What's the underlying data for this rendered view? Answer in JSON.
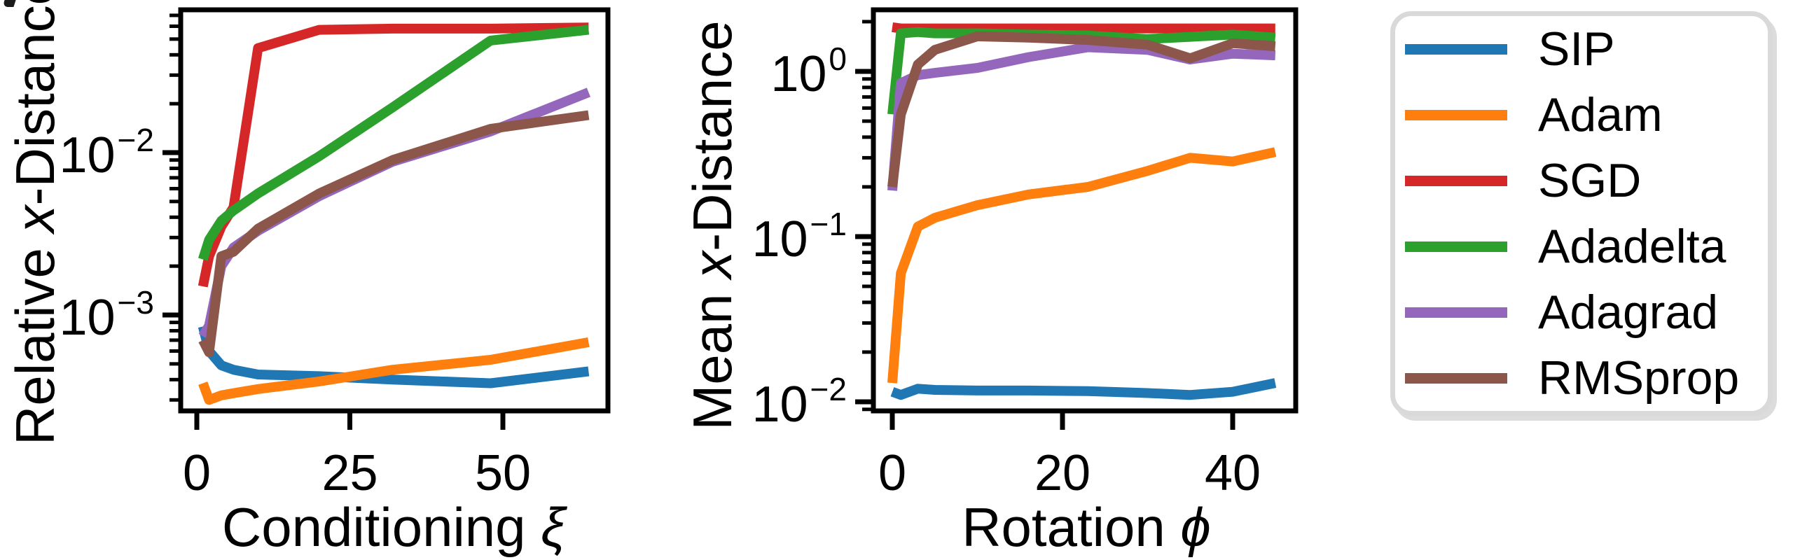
{
  "figure": {
    "background": "#ffffff",
    "axis_color": "#000000",
    "kind": "two-panel log-scale line plots with shared legend"
  },
  "legend": {
    "border_color": "#d9d9d9",
    "entries": [
      {
        "label": "SIP",
        "color": "#1f77b4"
      },
      {
        "label": "Adam",
        "color": "#ff7f0e"
      },
      {
        "label": "SGD",
        "color": "#d62728"
      },
      {
        "label": "Adadelta",
        "color": "#2ca02c"
      },
      {
        "label": "Adagrad",
        "color": "#9467bd"
      },
      {
        "label": "RMSprop",
        "color": "#8c564b"
      }
    ]
  },
  "chart_data": [
    {
      "type": "line",
      "title": "",
      "xlabel": "Conditioning ξ",
      "xlabel_prefix": "Conditioning ",
      "xlabel_symbol": "ξ",
      "ylabel": "Relative x-Distance",
      "ylabel_prefix": "Relative ",
      "ylabel_symbol": "x",
      "ylabel_suffix": "-Distance",
      "xscale": "linear",
      "yscale": "log",
      "xlim": [
        -2.2,
        67.2
      ],
      "ylim": [
        0.00026,
        0.076
      ],
      "x_ticks": [
        0,
        25,
        50
      ],
      "y_ticks": [
        "1e-3",
        "1e-2"
      ],
      "grid": false,
      "x": [
        1,
        2,
        4,
        6,
        10,
        20,
        32,
        48,
        64
      ],
      "series": [
        {
          "name": "SIP",
          "color": "#1f77b4",
          "values": [
            0.00085,
            0.0006,
            0.00049,
            0.00046,
            0.00043,
            0.00042,
            0.0004,
            0.00038,
            0.00045
          ]
        },
        {
          "name": "Adam",
          "color": "#ff7f0e",
          "values": [
            0.00038,
            0.0003,
            0.00032,
            0.00033,
            0.00035,
            0.00039,
            0.00046,
            0.00053,
            0.00068
          ]
        },
        {
          "name": "SGD",
          "color": "#d62728",
          "values": [
            0.0015,
            0.0023,
            0.0035,
            0.0046,
            0.044,
            0.057,
            0.058,
            0.058,
            0.059
          ]
        },
        {
          "name": "Adadelta",
          "color": "#2ca02c",
          "values": [
            0.0022,
            0.0029,
            0.0038,
            0.0044,
            0.0056,
            0.0095,
            0.019,
            0.049,
            0.057
          ]
        },
        {
          "name": "Adagrad",
          "color": "#9467bd",
          "values": [
            0.00074,
            0.00086,
            0.002,
            0.0026,
            0.0033,
            0.0054,
            0.0088,
            0.0135,
            0.0235
          ]
        },
        {
          "name": "RMSprop",
          "color": "#8c564b",
          "values": [
            0.0007,
            0.00059,
            0.0023,
            0.00245,
            0.0034,
            0.0056,
            0.009,
            0.014,
            0.017
          ]
        }
      ]
    },
    {
      "type": "line",
      "title": "",
      "xlabel": "Rotation ϕ",
      "xlabel_prefix": "Rotation ",
      "xlabel_symbol": "ϕ",
      "ylabel": "Mean x-Distance",
      "ylabel_prefix": "Mean ",
      "ylabel_symbol": "x",
      "ylabel_suffix": "-Distance",
      "xscale": "linear",
      "yscale": "log",
      "xlim": [
        -2.25,
        47.4
      ],
      "ylim": [
        0.0088,
        2.36
      ],
      "x_ticks": [
        0,
        20,
        40
      ],
      "y_ticks": [
        "1e-2",
        "1e-1",
        "1e0"
      ],
      "grid": false,
      "x": [
        0,
        1,
        3,
        5,
        10,
        16,
        23,
        30,
        35,
        40,
        45
      ],
      "series": [
        {
          "name": "SIP",
          "color": "#1f77b4",
          "values": [
            0.0115,
            0.011,
            0.012,
            0.0118,
            0.0117,
            0.0117,
            0.0116,
            0.0113,
            0.011,
            0.0115,
            0.013
          ]
        },
        {
          "name": "Adam",
          "color": "#ff7f0e",
          "values": [
            0.013,
            0.06,
            0.115,
            0.13,
            0.155,
            0.18,
            0.2,
            0.25,
            0.3,
            0.285,
            0.325
          ]
        },
        {
          "name": "SGD",
          "color": "#d62728",
          "values": [
            1.85,
            1.82,
            1.82,
            1.82,
            1.82,
            1.82,
            1.82,
            1.82,
            1.82,
            1.82,
            1.82
          ]
        },
        {
          "name": "Adadelta",
          "color": "#2ca02c",
          "values": [
            0.55,
            1.7,
            1.73,
            1.7,
            1.7,
            1.67,
            1.65,
            1.57,
            1.62,
            1.67,
            1.6
          ]
        },
        {
          "name": "Adagrad",
          "color": "#9467bd",
          "values": [
            0.19,
            0.85,
            0.95,
            0.98,
            1.05,
            1.22,
            1.4,
            1.35,
            1.18,
            1.28,
            1.25
          ]
        },
        {
          "name": "RMSprop",
          "color": "#8c564b",
          "values": [
            0.2,
            0.55,
            1.1,
            1.35,
            1.63,
            1.6,
            1.55,
            1.45,
            1.2,
            1.48,
            1.42
          ]
        }
      ]
    }
  ]
}
